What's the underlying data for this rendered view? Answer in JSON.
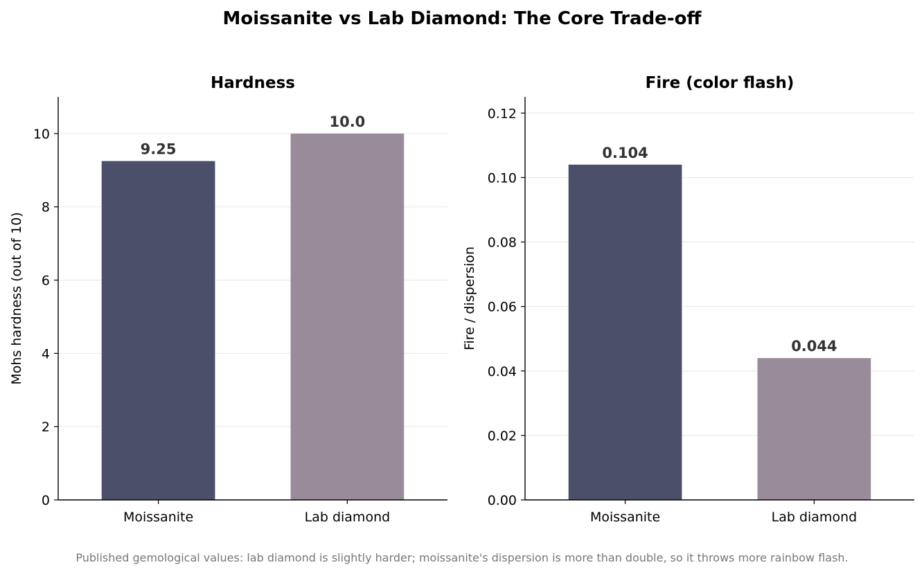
{
  "figure": {
    "title": "Moissanite vs Lab Diamond: The Core Trade-off",
    "footnote": "Published gemological values: lab diamond is slightly harder; moissanite's dispersion is more than double, so it throws more rainbow flash."
  },
  "colors": {
    "moissanite": "#4b4f6a",
    "lab_diamond": "#9a8b9a",
    "grid": "#e6e6e6",
    "axis": "#000000",
    "data_label": "#333333",
    "footnote": "#777777"
  },
  "chart_data": [
    {
      "type": "bar",
      "title": "Hardness",
      "categories": [
        "Moissanite",
        "Lab diamond"
      ],
      "values": [
        9.25,
        10.0
      ],
      "value_labels": [
        "9.25",
        "10.0"
      ],
      "xlabel": "",
      "ylabel": "Mohs hardness (out of 10)",
      "ylim": [
        0,
        11
      ],
      "yticks": [
        0,
        2,
        4,
        6,
        8,
        10
      ],
      "ytick_labels": [
        "0",
        "2",
        "4",
        "6",
        "8",
        "10"
      ],
      "grid": "y",
      "bar_colors": [
        "#4b4f6a",
        "#9a8b9a"
      ]
    },
    {
      "type": "bar",
      "title": "Fire (color flash)",
      "categories": [
        "Moissanite",
        "Lab diamond"
      ],
      "values": [
        0.104,
        0.044
      ],
      "value_labels": [
        "0.104",
        "0.044"
      ],
      "xlabel": "",
      "ylabel": "Fire / dispersion",
      "ylim": [
        0,
        0.125
      ],
      "yticks": [
        0,
        0.02,
        0.04,
        0.06,
        0.08,
        0.1,
        0.12
      ],
      "ytick_labels": [
        "0.00",
        "0.02",
        "0.04",
        "0.06",
        "0.08",
        "0.10",
        "0.12"
      ],
      "grid": "y",
      "bar_colors": [
        "#4b4f6a",
        "#9a8b9a"
      ]
    }
  ]
}
